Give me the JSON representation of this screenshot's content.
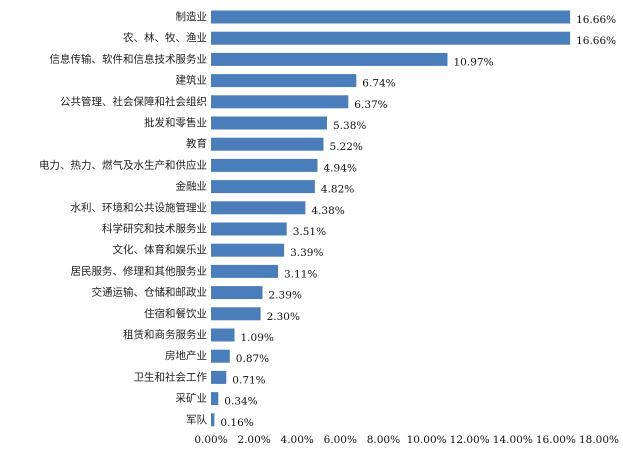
{
  "chart_data": {
    "type": "bar",
    "orientation": "horizontal",
    "categories": [
      "制造业",
      "农、林、牧、渔业",
      "信息传输、软件和信息技术服务业",
      "建筑业",
      "公共管理、社会保障和社会组织",
      "批发和零售业",
      "教育",
      "电力、热力、燃气及水生产和供应业",
      "金融业",
      "水利、环境和公共设施管理业",
      "科学研究和技术服务业",
      "文化、体育和娱乐业",
      "居民服务、修理和其他服务业",
      "交通运输、仓储和邮政业",
      "住宿和餐饮业",
      "租赁和商务服务业",
      "房地产业",
      "卫生和社会工作",
      "采矿业",
      "军队"
    ],
    "values": [
      16.66,
      16.66,
      10.97,
      6.74,
      6.37,
      5.38,
      5.22,
      4.94,
      4.82,
      4.38,
      3.51,
      3.39,
      3.11,
      2.39,
      2.3,
      1.09,
      0.87,
      0.71,
      0.34,
      0.16
    ],
    "data_labels": [
      "16.66%",
      "16.66%",
      "10.97%",
      "6.74%",
      "6.37%",
      "5.38%",
      "5.22%",
      "4.94%",
      "4.82%",
      "4.38%",
      "3.51%",
      "3.39%",
      "3.11%",
      "2.39%",
      "2.30%",
      "1.09%",
      "0.87%",
      "0.71%",
      "0.34%",
      "0.16%"
    ],
    "x_ticks": [
      0,
      2,
      4,
      6,
      8,
      10,
      12,
      14,
      16,
      18
    ],
    "x_tick_labels": [
      "0.00%",
      "2.00%",
      "4.00%",
      "6.00%",
      "8.00%",
      "10.00%",
      "12.00%",
      "14.00%",
      "16.00%",
      "18.00%"
    ],
    "xlim": [
      0,
      18
    ],
    "bar_color": "#4a7ebb",
    "grid": false,
    "legend": "none"
  }
}
